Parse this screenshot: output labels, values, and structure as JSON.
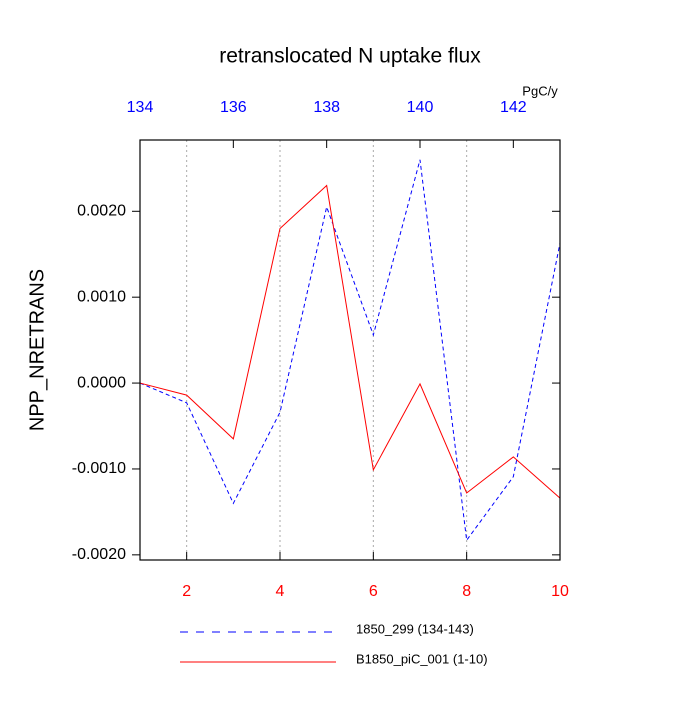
{
  "chart_data": {
    "type": "line",
    "title": "retranslocated N uptake flux",
    "y_label": "NPP_NRETRANS",
    "units": "PgC/y",
    "x": [
      1,
      2,
      3,
      4,
      5,
      6,
      7,
      8,
      9,
      10
    ],
    "xlim": [
      1,
      10
    ],
    "xticks": [
      2,
      4,
      6,
      8,
      10
    ],
    "xtick_color": "#ff0000",
    "x2": [
      134,
      135,
      136,
      137,
      138,
      139,
      140,
      141,
      142,
      143
    ],
    "x2lim": [
      134,
      143
    ],
    "x2ticks": [
      134,
      136,
      138,
      140,
      142
    ],
    "x2tick_color": "#0000ff",
    "ylim": [
      -0.00206,
      0.00283
    ],
    "yticks": [
      {
        "value": -0.002,
        "label": "-0.0020"
      },
      {
        "value": -0.001,
        "label": "-0.0010"
      },
      {
        "value": 0,
        "label": "0.0000"
      },
      {
        "value": 0.001,
        "label": "0.0010"
      },
      {
        "value": 0.002,
        "label": "0.0020"
      }
    ],
    "grid": true,
    "series": [
      {
        "name": "1850_299 (134-143)",
        "color": "#0000ff",
        "dashed": true,
        "x_axis": "x2",
        "values": [
          0,
          -0.00023,
          -0.0014,
          -0.00034,
          0.00205,
          0.00056,
          0.0026,
          -0.00183,
          -0.00109,
          0.00163
        ]
      },
      {
        "name": "B1850_piC_001 (1-10)",
        "color": "#ff0000",
        "dashed": false,
        "x_axis": "x",
        "values": [
          0,
          -0.00014,
          -0.00065,
          0.0018,
          0.0023,
          -0.00101,
          -1e-05,
          -0.00128,
          -0.00086,
          -0.00134
        ]
      }
    ]
  }
}
